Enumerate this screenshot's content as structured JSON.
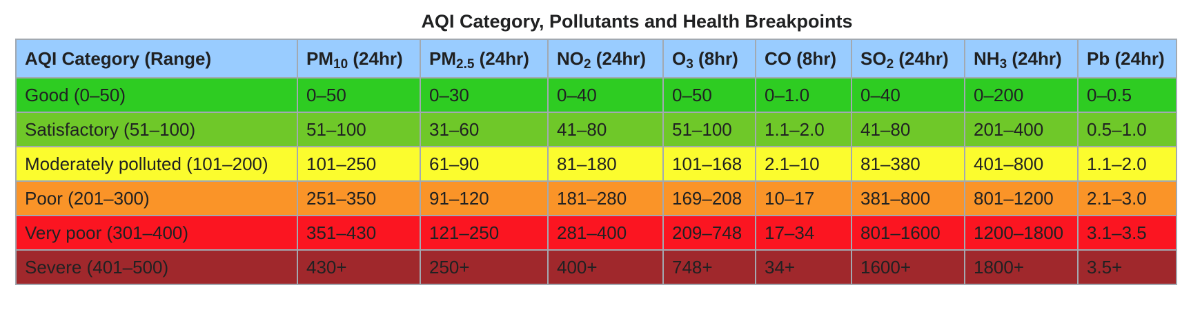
{
  "table": {
    "caption": "AQI Category, Pollutants and Health Breakpoints",
    "headers": [
      {
        "main": "AQI Category (Range)",
        "sub": "",
        "suffix": ""
      },
      {
        "main": "PM",
        "sub": "10",
        "suffix": " (24hr)"
      },
      {
        "main": "PM",
        "sub": "2.5",
        "suffix": " (24hr)"
      },
      {
        "main": "NO",
        "sub": "2",
        "suffix": " (24hr)"
      },
      {
        "main": "O",
        "sub": "3",
        "suffix": " (8hr)"
      },
      {
        "main": "CO (8hr)",
        "sub": "",
        "suffix": ""
      },
      {
        "main": "SO",
        "sub": "2",
        "suffix": " (24hr)"
      },
      {
        "main": "NH",
        "sub": "3",
        "suffix": " (24hr)"
      },
      {
        "main": "Pb (24hr)",
        "sub": "",
        "suffix": ""
      }
    ],
    "rows": [
      {
        "color": "#2ecc22",
        "text_color": "#202122",
        "cells": [
          "Good (0–50)",
          "0–50",
          "0–30",
          "0–40",
          "0–50",
          "0–1.0",
          "0–40",
          "0–200",
          "0–0.5"
        ]
      },
      {
        "color": "#6fc829",
        "text_color": "#202122",
        "cells": [
          "Satisfactory (51–100)",
          "51–100",
          "31–60",
          "41–80",
          "51–100",
          "1.1–2.0",
          "41–80",
          "201–400",
          "0.5–1.0"
        ]
      },
      {
        "color": "#fbfc2e",
        "text_color": "#202122",
        "cells": [
          "Moderately polluted (101–200)",
          "101–250",
          "61–90",
          "81–180",
          "101–168",
          "2.1–10",
          "81–380",
          "401–800",
          "1.1–2.0"
        ]
      },
      {
        "color": "#fa9428",
        "text_color": "#202122",
        "cells": [
          "Poor (201–300)",
          "251–350",
          "91–120",
          "181–280",
          "169–208",
          "10–17",
          "381–800",
          "801–1200",
          "2.1–3.0"
        ]
      },
      {
        "color": "#fb1521",
        "text_color": "#202122",
        "cells": [
          "Very poor (301–400)",
          "351–430",
          "121–250",
          "281–400",
          "209–748",
          "17–34",
          "801–1600",
          "1200–1800",
          "3.1–3.5"
        ]
      },
      {
        "color": "#a0282c",
        "text_color": "#202122",
        "cells": [
          "Severe (401–500)",
          "430+",
          "250+",
          "400+",
          "748+",
          "34+",
          "1600+",
          "1800+",
          "3.5+"
        ]
      }
    ]
  }
}
